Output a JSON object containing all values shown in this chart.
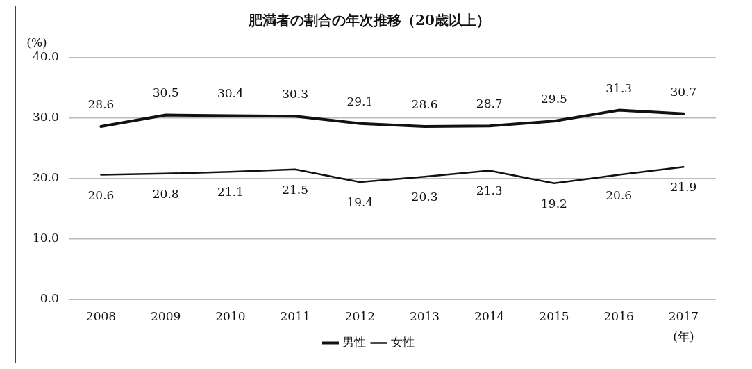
{
  "chart_data": {
    "type": "line",
    "title": "肥満者の割合の年次推移（20歳以上）",
    "xlabel": "(年)",
    "ylabel": "(%)",
    "categories": [
      "2008",
      "2009",
      "2010",
      "2011",
      "2012",
      "2013",
      "2014",
      "2015",
      "2016",
      "2017"
    ],
    "series": [
      {
        "name": "男性",
        "color": "#111111",
        "values": [
          28.6,
          30.5,
          30.4,
          30.3,
          29.1,
          28.6,
          28.7,
          29.5,
          31.3,
          30.7
        ]
      },
      {
        "name": "女性",
        "color": "#111111",
        "values": [
          20.6,
          20.8,
          21.1,
          21.5,
          19.4,
          20.3,
          21.3,
          19.2,
          20.6,
          21.9
        ]
      }
    ],
    "ylim": [
      0,
      40
    ],
    "yticks": [
      {
        "value": 0,
        "label": "0.0"
      },
      {
        "value": 10,
        "label": "10.0"
      },
      {
        "value": 20,
        "label": "20.0"
      },
      {
        "value": 30,
        "label": "30.0"
      },
      {
        "value": 40,
        "label": "40.0"
      }
    ],
    "grid": "y",
    "legend": "bottom",
    "marker": "none",
    "line_style": "solid",
    "data_labels": true
  }
}
